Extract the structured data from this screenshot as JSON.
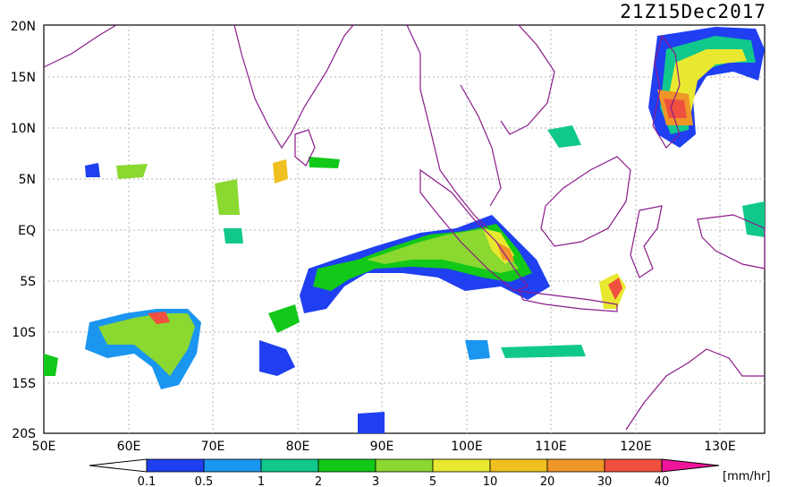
{
  "title": "21Z15Dec2017",
  "lat_labels": [
    "20N",
    "15N",
    "10N",
    "5N",
    "EQ",
    "5S",
    "10S",
    "15S",
    "20S"
  ],
  "lon_labels": [
    "50E",
    "60E",
    "70E",
    "80E",
    "90E",
    "100E",
    "110E",
    "120E",
    "130E"
  ],
  "colorbar": {
    "ticks": [
      "0.1",
      "0.5",
      "1",
      "2",
      "3",
      "5",
      "10",
      "20",
      "30",
      "40"
    ],
    "unit": "[mm/hr]",
    "colors": [
      "#1f3ff0",
      "#1a96f0",
      "#10c88c",
      "#12c818",
      "#8ad830",
      "#e8e830",
      "#f0c020",
      "#f09628",
      "#f05040",
      "#f0148c"
    ]
  }
}
